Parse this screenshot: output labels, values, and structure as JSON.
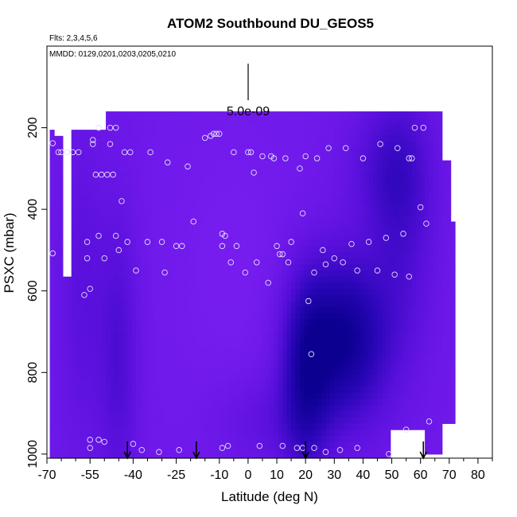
{
  "chart_data": {
    "type": "heatmap",
    "title": "ATOM2 Southbound DU_GEOS5",
    "subtitle": "Flts: 2,3,4,5,6",
    "annotation": "MMDD: 0129,0201,0203,0205,0210",
    "scale_label": "5.0e-09",
    "xlabel": "Latitude (deg N)",
    "ylabel": "PSXC (mbar)",
    "xlim": [
      -70,
      85
    ],
    "ylim": [
      1010,
      0
    ],
    "y_reversed": true,
    "x_ticks": [
      -70,
      -55,
      -40,
      -25,
      -10,
      0,
      10,
      20,
      30,
      40,
      50,
      60,
      70,
      80
    ],
    "x_tick_labels": [
      "-70",
      "-55",
      "-40",
      "-25",
      "-10",
      "0",
      "10",
      "20",
      "30",
      "40",
      "50",
      "60",
      "70",
      "80"
    ],
    "x_minor_ticks": [
      -65,
      -60,
      -50,
      -45,
      -35,
      -30,
      -20,
      -15,
      -5,
      5,
      15,
      25,
      35,
      45,
      55,
      65,
      75,
      85
    ],
    "y_ticks": [
      200,
      400,
      600,
      800,
      1000
    ],
    "y_tick_labels": [
      "200",
      "400",
      "600",
      "800",
      "1000"
    ],
    "grid": false,
    "colormap": [
      "#7a1ef2",
      "#5a10dc",
      "#2a06b8",
      "#0c0090"
    ],
    "arrows_lat": [
      -42,
      -18,
      20,
      61
    ],
    "sample_points": [
      [
        -68,
        238
      ],
      [
        -68,
        508
      ],
      [
        -66,
        260
      ],
      [
        -65,
        260
      ],
      [
        -63,
        260
      ],
      [
        -61,
        260
      ],
      [
        -59,
        260
      ],
      [
        -57,
        610
      ],
      [
        -56,
        480
      ],
      [
        -56,
        520
      ],
      [
        -55,
        595
      ],
      [
        -54,
        230
      ],
      [
        -54,
        240
      ],
      [
        -52,
        465
      ],
      [
        -52,
        965
      ],
      [
        -55,
        965
      ],
      [
        -55,
        985
      ],
      [
        -53,
        315
      ],
      [
        -52,
        200
      ],
      [
        -51,
        315
      ],
      [
        -50,
        520
      ],
      [
        -50,
        970
      ],
      [
        -49,
        315
      ],
      [
        -48,
        240
      ],
      [
        -48,
        200
      ],
      [
        -47,
        315
      ],
      [
        -46,
        200
      ],
      [
        -46,
        465
      ],
      [
        -45,
        500
      ],
      [
        -44,
        380
      ],
      [
        -43,
        260
      ],
      [
        -42,
        480
      ],
      [
        -41,
        260
      ],
      [
        -40,
        975
      ],
      [
        -39,
        550
      ],
      [
        -37,
        990
      ],
      [
        -35,
        480
      ],
      [
        -34,
        260
      ],
      [
        -31,
        995
      ],
      [
        -30,
        480
      ],
      [
        -29,
        555
      ],
      [
        -28,
        285
      ],
      [
        -25,
        490
      ],
      [
        -24,
        990
      ],
      [
        -23,
        490
      ],
      [
        -21,
        295
      ],
      [
        -19,
        430
      ],
      [
        -15,
        225
      ],
      [
        -13,
        220
      ],
      [
        -12,
        215
      ],
      [
        -11,
        215
      ],
      [
        -10,
        215
      ],
      [
        -9,
        460
      ],
      [
        -9,
        490
      ],
      [
        -9,
        985
      ],
      [
        -8,
        465
      ],
      [
        -7,
        980
      ],
      [
        -6,
        530
      ],
      [
        -5,
        260
      ],
      [
        -4,
        490
      ],
      [
        -1,
        555
      ],
      [
        0,
        260
      ],
      [
        1,
        260
      ],
      [
        2,
        310
      ],
      [
        3,
        530
      ],
      [
        4,
        980
      ],
      [
        5,
        270
      ],
      [
        7,
        580
      ],
      [
        8,
        270
      ],
      [
        9,
        275
      ],
      [
        10,
        490
      ],
      [
        11,
        510
      ],
      [
        12,
        510
      ],
      [
        12,
        980
      ],
      [
        13,
        275
      ],
      [
        14,
        530
      ],
      [
        15,
        480
      ],
      [
        17,
        985
      ],
      [
        18,
        300
      ],
      [
        19,
        985
      ],
      [
        19,
        410
      ],
      [
        20,
        270
      ],
      [
        21,
        625
      ],
      [
        22,
        755
      ],
      [
        23,
        985
      ],
      [
        23,
        555
      ],
      [
        24,
        275
      ],
      [
        26,
        500
      ],
      [
        27,
        995
      ],
      [
        27,
        535
      ],
      [
        28,
        250
      ],
      [
        30,
        520
      ],
      [
        32,
        990
      ],
      [
        33,
        530
      ],
      [
        34,
        250
      ],
      [
        36,
        485
      ],
      [
        38,
        985
      ],
      [
        38,
        550
      ],
      [
        40,
        275
      ],
      [
        42,
        480
      ],
      [
        45,
        550
      ],
      [
        46,
        240
      ],
      [
        48,
        470
      ],
      [
        49,
        1000
      ],
      [
        51,
        560
      ],
      [
        52,
        250
      ],
      [
        54,
        460
      ],
      [
        55,
        940
      ],
      [
        56,
        565
      ],
      [
        56,
        275
      ],
      [
        57,
        275
      ],
      [
        58,
        200
      ],
      [
        60,
        395
      ],
      [
        61,
        200
      ],
      [
        62,
        435
      ],
      [
        63,
        920
      ]
    ]
  }
}
